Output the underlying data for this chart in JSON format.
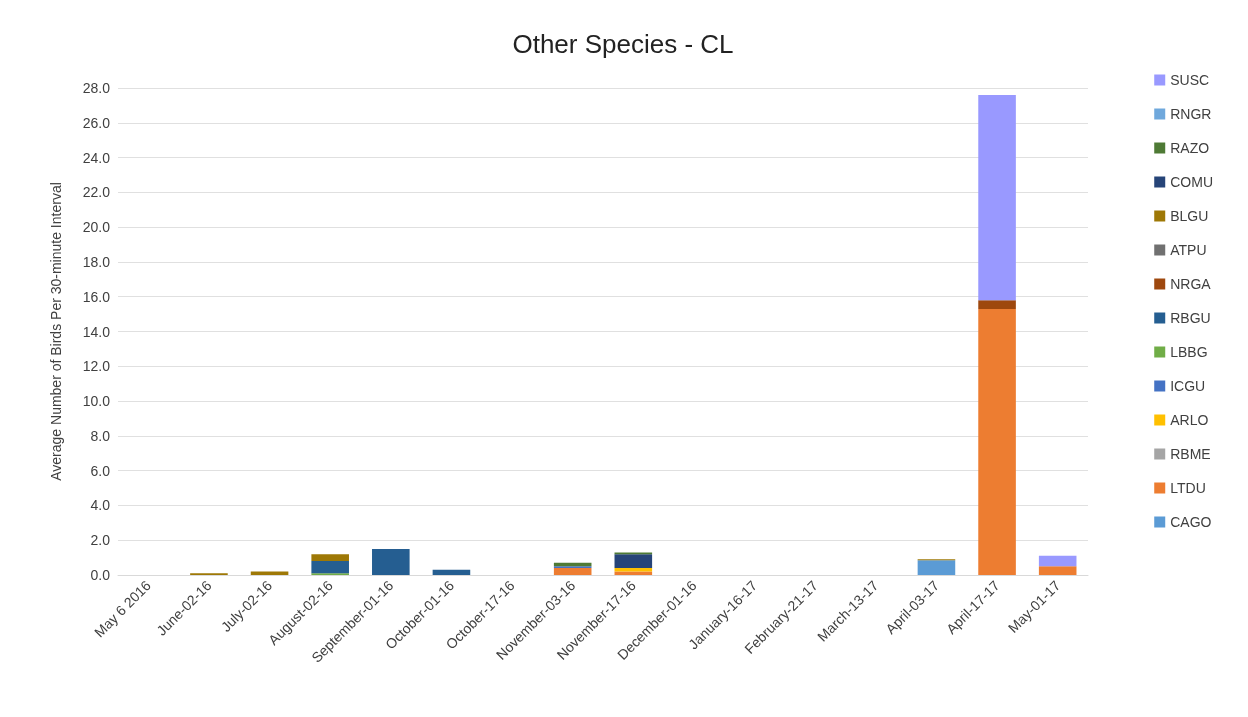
{
  "chart_data": {
    "type": "bar",
    "title": "Other Species - CL",
    "ylabel": "Average Number of Birds Per 30-minute Interval",
    "stacked": true,
    "grid": "y",
    "legend": "right",
    "categories": [
      "May 6 2016",
      "June-02-16",
      "July-02-16",
      "August-02-16",
      "September-01-16",
      "October-01-16",
      "October-17-16",
      "November-03-16",
      "November-17-16",
      "December-01-16",
      "January-16-17",
      "February-21-17",
      "March-13-17",
      "April-03-17",
      "April-17-17",
      "May-01-17"
    ],
    "ylim": [
      0,
      28
    ],
    "yticks": [
      {
        "value": 0,
        "label": "0.0"
      },
      {
        "value": 2,
        "label": "2.0"
      },
      {
        "value": 4,
        "label": "4.0"
      },
      {
        "value": 6,
        "label": "6.0"
      },
      {
        "value": 8,
        "label": "8.0"
      },
      {
        "value": 10,
        "label": "10.0"
      },
      {
        "value": 12,
        "label": "12.0"
      },
      {
        "value": 14,
        "label": "14.0"
      },
      {
        "value": 16,
        "label": "16.0"
      },
      {
        "value": 18,
        "label": "18.0"
      },
      {
        "value": 20,
        "label": "20.0"
      },
      {
        "value": 22,
        "label": "22.0"
      },
      {
        "value": 24,
        "label": "24.0"
      },
      {
        "value": 26,
        "label": "26.0"
      },
      {
        "value": 28,
        "label": "28.0"
      }
    ],
    "series": [
      {
        "name": "CAGO",
        "color": "#5b9bd5",
        "values": [
          0,
          0,
          0,
          0,
          0,
          0,
          0,
          0,
          0,
          0,
          0,
          0,
          0,
          0.85,
          0,
          0
        ]
      },
      {
        "name": "LTDU",
        "color": "#ed7d31",
        "values": [
          0,
          0,
          0,
          0,
          0,
          0,
          0,
          0.4,
          0.2,
          0,
          0,
          0,
          0,
          0,
          15.3,
          0.5
        ]
      },
      {
        "name": "RBME",
        "color": "#a5a5a5",
        "values": [
          0,
          0,
          0,
          0,
          0,
          0,
          0,
          0,
          0,
          0,
          0,
          0,
          0,
          0,
          0,
          0
        ]
      },
      {
        "name": "ARLO",
        "color": "#ffc000",
        "values": [
          0,
          0,
          0,
          0,
          0,
          0,
          0,
          0,
          0.2,
          0,
          0,
          0,
          0,
          0,
          0,
          0
        ]
      },
      {
        "name": "ICGU",
        "color": "#4472c4",
        "values": [
          0,
          0,
          0,
          0,
          0,
          0,
          0,
          0.1,
          0,
          0,
          0,
          0,
          0,
          0,
          0,
          0
        ]
      },
      {
        "name": "LBBG",
        "color": "#70ad47",
        "values": [
          0,
          0,
          0,
          0.1,
          0,
          0,
          0,
          0,
          0,
          0,
          0,
          0,
          0,
          0,
          0,
          0
        ]
      },
      {
        "name": "RBGU",
        "color": "#255e91",
        "values": [
          0,
          0,
          0,
          0.7,
          1.5,
          0.3,
          0,
          0,
          0,
          0,
          0,
          0,
          0,
          0,
          0,
          0
        ]
      },
      {
        "name": "NRGA",
        "color": "#9e480e",
        "values": [
          0,
          0,
          0,
          0,
          0,
          0,
          0,
          0,
          0,
          0,
          0,
          0,
          0,
          0,
          0.5,
          0
        ]
      },
      {
        "name": "ATPU",
        "color": "#707070",
        "values": [
          0,
          0,
          0,
          0,
          0,
          0,
          0,
          0,
          0,
          0,
          0,
          0,
          0,
          0,
          0,
          0
        ]
      },
      {
        "name": "BLGU",
        "color": "#9e7806",
        "values": [
          0,
          0.1,
          0.2,
          0.4,
          0,
          0,
          0,
          0,
          0,
          0,
          0,
          0,
          0,
          0.05,
          0,
          0
        ]
      },
      {
        "name": "COMU",
        "color": "#264478",
        "values": [
          0,
          0,
          0,
          0,
          0,
          0,
          0,
          0,
          0.8,
          0,
          0,
          0,
          0,
          0,
          0,
          0
        ]
      },
      {
        "name": "RAZO",
        "color": "#4e7a35",
        "values": [
          0,
          0,
          0,
          0,
          0,
          0,
          0,
          0.2,
          0.1,
          0,
          0,
          0,
          0,
          0,
          0,
          0
        ]
      },
      {
        "name": "RNGR",
        "color": "#6fa8dc",
        "values": [
          0,
          0,
          0,
          0,
          0,
          0,
          0,
          0,
          0,
          0,
          0,
          0,
          0,
          0,
          0,
          0
        ]
      },
      {
        "name": "SUSC",
        "color": "#9999ff",
        "values": [
          0,
          0,
          0,
          0,
          0,
          0,
          0,
          0,
          0,
          0,
          0,
          0,
          0,
          0,
          11.8,
          0.6
        ]
      }
    ]
  }
}
